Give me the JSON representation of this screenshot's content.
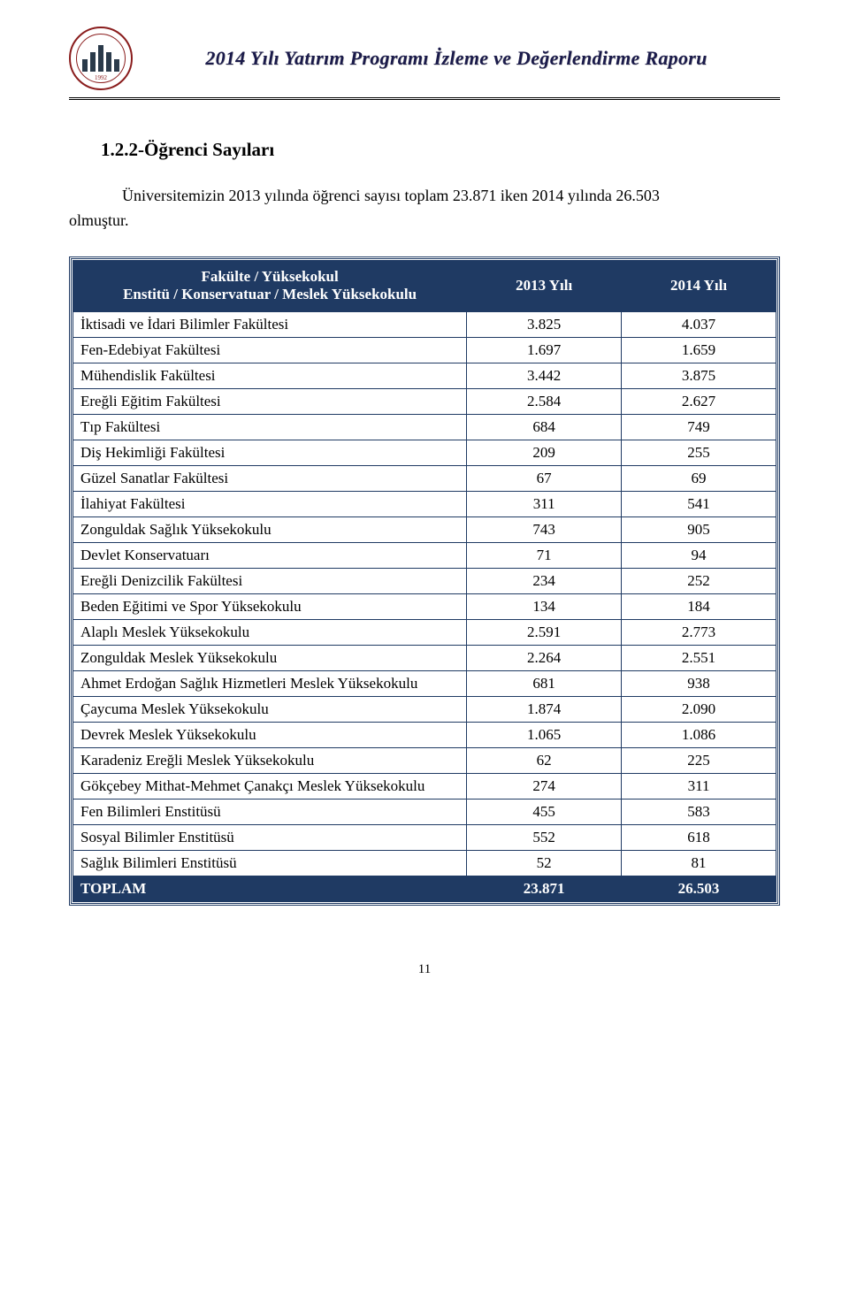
{
  "colors": {
    "table_border": "#1f3a63",
    "table_header_bg": "#1f3a63",
    "table_header_text": "#ffffff",
    "header_title_color": "#1a1a4a",
    "logo_ring": "#8a1d1d",
    "background": "#ffffff"
  },
  "fontsizes": {
    "header_title": 22,
    "section_title": 21,
    "intro": 18,
    "table": 17,
    "page_num": 15
  },
  "header": {
    "title": "2014 Yılı Yatırım Programı İzleme ve Değerlendirme Raporu",
    "logo_year": "1992"
  },
  "section": {
    "title": "1.2.2-Öğrenci Sayıları",
    "intro_line1": "Üniversitemizin 2013 yılında öğrenci sayısı toplam 23.871 iken 2014 yılında 26.503",
    "intro_line2": "olmuştur."
  },
  "table": {
    "type": "table",
    "header_col1_line1": "Fakülte / Yüksekokul",
    "header_col1_line2": "Enstitü / Konservatuar / Meslek Yüksekokulu",
    "header_col2": "2013 Yılı",
    "header_col3": "2014 Yılı",
    "columns_width_pct": [
      56,
      22,
      22
    ],
    "rows": [
      {
        "name": "İktisadi ve İdari Bilimler Fakültesi",
        "y2013": "3.825",
        "y2014": "4.037"
      },
      {
        "name": "Fen-Edebiyat Fakültesi",
        "y2013": "1.697",
        "y2014": "1.659"
      },
      {
        "name": "Mühendislik Fakültesi",
        "y2013": "3.442",
        "y2014": "3.875"
      },
      {
        "name": "Ereğli Eğitim Fakültesi",
        "y2013": "2.584",
        "y2014": "2.627"
      },
      {
        "name": "Tıp Fakültesi",
        "y2013": "684",
        "y2014": "749"
      },
      {
        "name": "Diş Hekimliği Fakültesi",
        "y2013": "209",
        "y2014": "255"
      },
      {
        "name": "Güzel Sanatlar Fakültesi",
        "y2013": "67",
        "y2014": "69"
      },
      {
        "name": "İlahiyat Fakültesi",
        "y2013": "311",
        "y2014": "541"
      },
      {
        "name": "Zonguldak Sağlık Yüksekokulu",
        "y2013": "743",
        "y2014": "905"
      },
      {
        "name": "Devlet Konservatuarı",
        "y2013": "71",
        "y2014": "94"
      },
      {
        "name": "Ereğli Denizcilik Fakültesi",
        "y2013": "234",
        "y2014": "252"
      },
      {
        "name": "Beden Eğitimi ve Spor Yüksekokulu",
        "y2013": "134",
        "y2014": "184"
      },
      {
        "name": "Alaplı Meslek Yüksekokulu",
        "y2013": "2.591",
        "y2014": "2.773"
      },
      {
        "name": "Zonguldak  Meslek Yüksekokulu",
        "y2013": "2.264",
        "y2014": "2.551"
      },
      {
        "name": "Ahmet Erdoğan Sağlık Hizmetleri Meslek Yüksekokulu",
        "y2013": "681",
        "y2014": "938"
      },
      {
        "name": "Çaycuma  Meslek Yüksekokulu",
        "y2013": "1.874",
        "y2014": "2.090"
      },
      {
        "name": "Devrek   Meslek Yüksekokulu",
        "y2013": "1.065",
        "y2014": "1.086"
      },
      {
        "name": "Karadeniz Ereğli Meslek Yüksekokulu",
        "y2013": "62",
        "y2014": "225"
      },
      {
        "name": "Gökçebey Mithat-Mehmet Çanakçı  Meslek Yüksekokulu",
        "y2013": "274",
        "y2014": "311"
      },
      {
        "name": "Fen Bilimleri Enstitüsü",
        "y2013": "455",
        "y2014": "583"
      },
      {
        "name": "Sosyal Bilimler Enstitüsü",
        "y2013": "552",
        "y2014": "618"
      },
      {
        "name": "Sağlık Bilimleri Enstitüsü",
        "y2013": "52",
        "y2014": "81"
      }
    ],
    "total": {
      "name": "TOPLAM",
      "y2013": "23.871",
      "y2014": "26.503"
    }
  },
  "page_number": "11"
}
